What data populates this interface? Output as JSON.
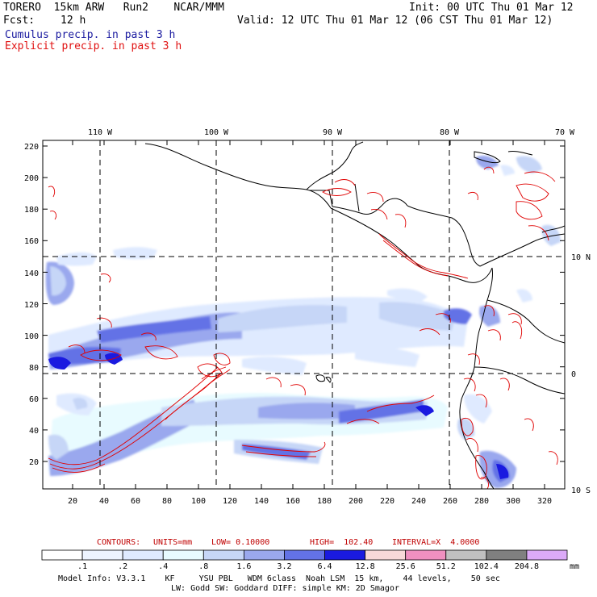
{
  "header": {
    "model": "TORERO  15km ARW   Run2    NCAR/MMM",
    "init": "Init: 00 UTC Thu 01 Mar 12",
    "fcst_label": "Fcst:",
    "fcst_value": "12 h",
    "valid": "Valid: 12 UTC Thu 01 Mar 12 (06 CST Thu 01 Mar 12)",
    "field1": "Cumulus precip. in past 3 h",
    "field2": "Explicit precip. in past 3 h"
  },
  "axes": {
    "top_lon_labels": [
      "110 W",
      "100 W",
      "90 W",
      "80 W",
      "70 W"
    ],
    "right_lat_labels": [
      "10 N",
      "0",
      "10 S"
    ],
    "y_ticks": [
      "220",
      "200",
      "180",
      "160",
      "140",
      "120",
      "100",
      "80",
      "60",
      "40",
      "20"
    ],
    "x_ticks": [
      "20",
      "40",
      "60",
      "80",
      "100",
      "120",
      "140",
      "160",
      "180",
      "200",
      "220",
      "240",
      "260",
      "280",
      "300",
      "320"
    ]
  },
  "contour_caption": {
    "contours": "CONTOURS:",
    "units": "UNITS=mm",
    "low": "LOW= 0.10000",
    "high": "HIGH=  102.40",
    "interval": "INTERVAL=X  4.0000"
  },
  "colorbar": {
    "labels": [
      ".1",
      ".2",
      ".4",
      ".8",
      "1.6",
      "3.2",
      "6.4",
      "12.8",
      "25.6",
      "51.2",
      "102.4",
      "204.8"
    ],
    "unit": "mm",
    "colors": [
      "#ffffff",
      "#eef4ff",
      "#dfeaff",
      "#e8fbff",
      "#c6d6f7",
      "#9aa8ee",
      "#6372e6",
      "#1a1ae0",
      "#f8d8d8",
      "#f090c0",
      "#c0c0c0",
      "#808080",
      "#dcaaf8"
    ]
  },
  "model_info": {
    "line1": "Model Info: V3.3.1    KF     YSU PBL   WDM 6class  Noah LSM  15 km,    44 levels,    50 sec",
    "line2": "LW: Godd SW: Goddard DIFF: simple KM: 2D Smagor"
  }
}
